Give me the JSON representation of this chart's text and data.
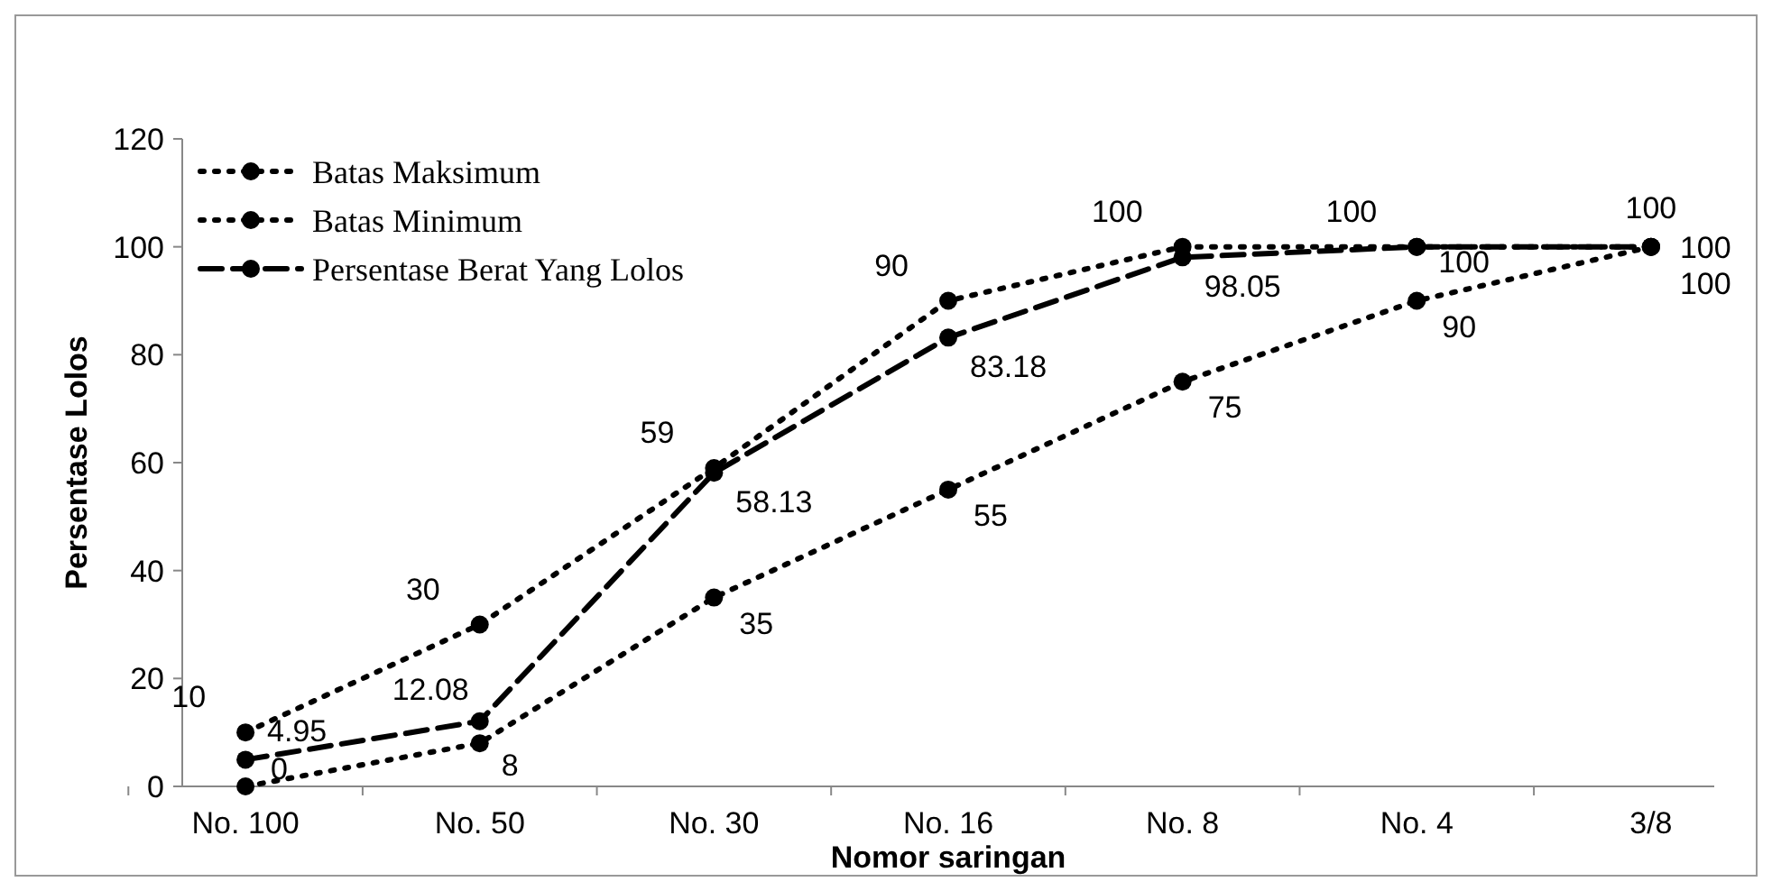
{
  "chart_data": {
    "type": "line",
    "xlabel": "Nomor saringan",
    "ylabel": "Persentase Lolos",
    "categories": [
      "No. 100",
      "No. 50",
      "No. 30",
      "No. 16",
      "No. 8",
      "No. 4",
      "3/8"
    ],
    "series": [
      {
        "name": "Batas Maksimum",
        "color": "#000000",
        "line_style": "dotted",
        "values": [
          10,
          30,
          59,
          90,
          100,
          100,
          100
        ]
      },
      {
        "name": "Batas Minimum",
        "color": "#000000",
        "line_style": "dotted",
        "values": [
          0,
          8,
          35,
          55,
          75,
          90,
          100
        ]
      },
      {
        "name": "Persentase Berat Yang Lolos",
        "color": "#000000",
        "line_style": "dashed",
        "values": [
          4.95,
          12.08,
          58.13,
          83.18,
          98.05,
          100,
          100
        ]
      }
    ],
    "ylim": [
      0,
      120
    ],
    "yticks": [
      0,
      20,
      40,
      60,
      80,
      100,
      120
    ],
    "marker": "circle",
    "data_labels": true,
    "legend": "top left",
    "grid": false
  }
}
